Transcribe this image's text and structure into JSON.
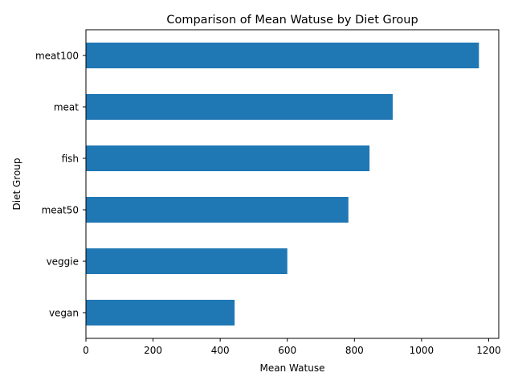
{
  "chart_data": {
    "type": "bar",
    "orientation": "horizontal",
    "title": "Comparison of Mean Watuse by Diet Group",
    "xlabel": "Mean Watuse",
    "ylabel": "Diet Group",
    "categories": [
      "vegan",
      "veggie",
      "meat50",
      "fish",
      "meat",
      "meat100"
    ],
    "values": [
      443,
      600,
      782,
      845,
      914,
      1171
    ],
    "xlim": [
      0,
      1230
    ],
    "xticks": [
      0,
      200,
      400,
      600,
      800,
      1000,
      1200
    ],
    "bar_color": "#1f77b4",
    "grid": false,
    "legend": "none"
  }
}
